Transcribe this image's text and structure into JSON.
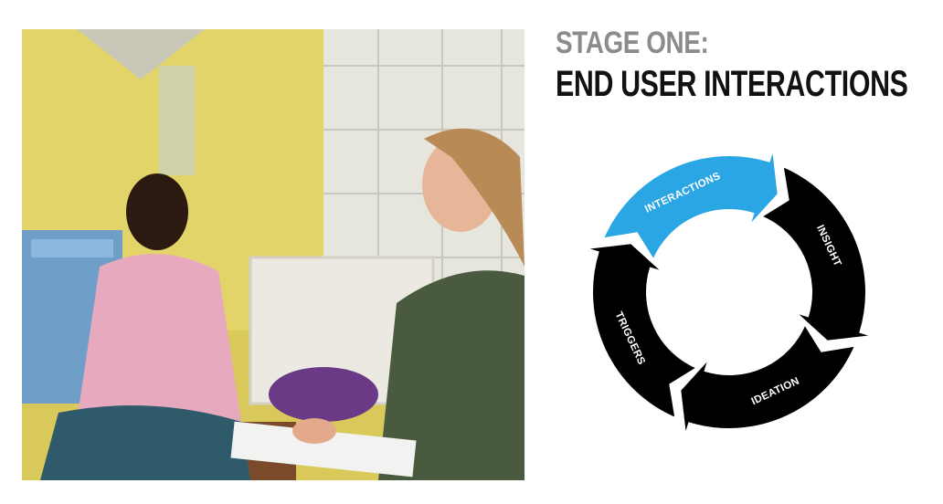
{
  "heading": {
    "eyebrow": "STAGE ONE:",
    "title": "END USER INTERACTIONS"
  },
  "cycle": {
    "segments": [
      {
        "label": "INTERACTIONS",
        "color": "#29a6e3",
        "active": true
      },
      {
        "label": "INSIGHT",
        "color": "#000000",
        "active": false
      },
      {
        "label": "IDEATION",
        "color": "#000000",
        "active": false
      },
      {
        "label": "TRIGGERS",
        "color": "#000000",
        "active": false
      }
    ]
  },
  "photo": {
    "description_icon": "photo-image"
  }
}
